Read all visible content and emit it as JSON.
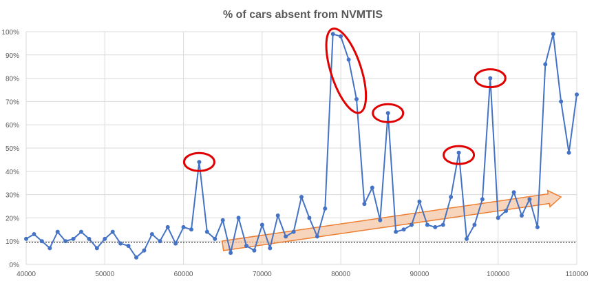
{
  "chart_data": {
    "type": "line",
    "title": "% of cars absent from NVMTIS",
    "xlabel": "",
    "ylabel": "",
    "xlim": [
      40000,
      110000
    ],
    "ylim": [
      0,
      100
    ],
    "x_ticks": [
      "40000",
      "50000",
      "60000",
      "70000",
      "80000",
      "90000",
      "100000",
      "110000"
    ],
    "y_ticks": [
      "0%",
      "10%",
      "20%",
      "30%",
      "40%",
      "50%",
      "60%",
      "70%",
      "80%",
      "90%",
      "100%"
    ],
    "grid": true,
    "legend": "none",
    "series": [
      {
        "color": "#4472c4",
        "x": [
          40000,
          41000,
          42000,
          43000,
          44000,
          45000,
          46000,
          47000,
          48000,
          49000,
          50000,
          51000,
          52000,
          53000,
          54000,
          55000,
          56000,
          57000,
          58000,
          59000,
          60000,
          61000,
          62000,
          63000,
          64000,
          65000,
          66000,
          67000,
          68000,
          69000,
          70000,
          71000,
          72000,
          73000,
          74000,
          75000,
          76000,
          77000,
          78000,
          79000,
          80000,
          81000,
          82000,
          83000,
          84000,
          85000,
          86000,
          87000,
          88000,
          89000,
          90000,
          91000,
          92000,
          93000,
          94000,
          95000,
          96000,
          97000,
          98000,
          99000,
          100000,
          101000,
          102000,
          103000,
          104000,
          105000,
          106000,
          107000,
          108000,
          109000,
          110000
        ],
        "values": [
          11,
          13,
          10,
          7,
          14,
          10,
          11,
          14,
          11,
          7,
          11,
          14,
          9,
          8,
          3,
          6,
          13,
          10,
          16,
          9,
          16,
          15,
          44,
          14,
          11,
          19,
          5,
          20,
          8,
          6,
          17,
          7,
          21,
          12,
          14,
          29,
          20,
          12,
          24,
          99,
          98,
          88,
          71,
          26,
          33,
          19,
          65,
          14,
          15,
          17,
          27,
          17,
          16,
          17,
          29,
          48,
          11,
          17,
          28,
          80,
          20,
          23,
          31,
          21,
          28,
          16,
          86,
          99,
          70,
          48,
          73
        ]
      }
    ],
    "reference_line": {
      "y": 9.5,
      "style": "dotted",
      "color": "#000000"
    },
    "highlight_ellipses": [
      {
        "x": 62000,
        "y": 44
      },
      {
        "x": 80500,
        "y": 85
      },
      {
        "x": 86000,
        "y": 65
      },
      {
        "x": 95000,
        "y": 47
      },
      {
        "x": 99000,
        "y": 80
      }
    ],
    "trend_arrow": {
      "from": [
        65000,
        8
      ],
      "to": [
        108000,
        29
      ],
      "color": "#ed7d31"
    }
  }
}
